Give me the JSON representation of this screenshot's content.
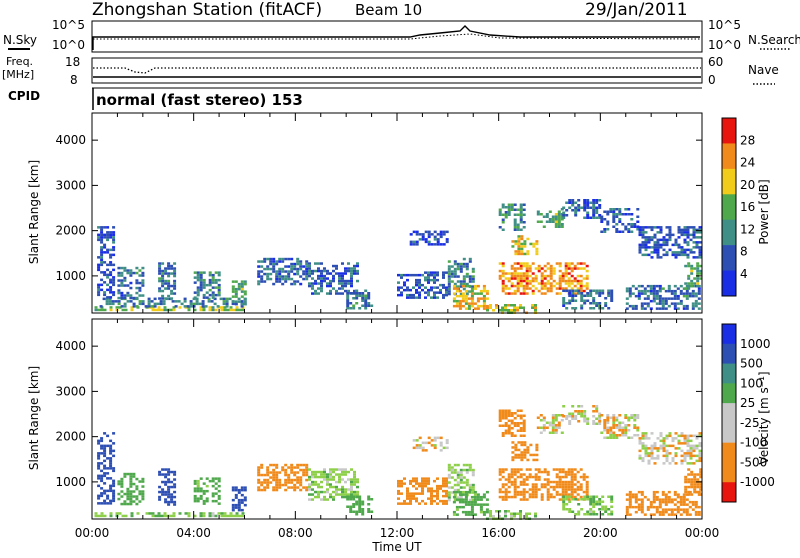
{
  "header": {
    "station": "Zhongshan Station (fitACF)",
    "beam": "Beam 10",
    "date": "29/Jan/2011"
  },
  "noise_panel": {
    "left_label": "N.Sky",
    "right_label": "N.Search",
    "tick_top": "10^5",
    "tick_bottom": "10^0"
  },
  "freq_panel": {
    "left_label_1": "Freq.",
    "left_label_2": "[MHz]",
    "tick_top": "18",
    "tick_bottom": "8",
    "right_label": "Nave",
    "right_tick_top": "60",
    "right_tick_bottom": "0"
  },
  "cpid": {
    "label": "CPID",
    "text": "normal (fast stereo) 153"
  },
  "x_axis": {
    "label": "Time UT",
    "ticks": [
      "00:00",
      "04:00",
      "08:00",
      "12:00",
      "16:00",
      "20:00",
      "00:00"
    ]
  },
  "colors": {
    "blue": "#1a2ee6",
    "dark_blue": "#2d4fb4",
    "teal": "#3f8f86",
    "green": "#4fa84b",
    "light_green": "#8fd04a",
    "yellow": "#f2cc1a",
    "orange": "#f08a1a",
    "red": "#e8140e",
    "grey": "#c8c8c8"
  },
  "chart_data": [
    {
      "type": "heatmap",
      "title": "",
      "ylabel": "Slant Range [km]",
      "xlabel": "",
      "ylim": [
        180,
        4600
      ],
      "xlim": [
        0,
        24
      ],
      "y_ticks": [
        "1000",
        "2000",
        "3000",
        "4000"
      ],
      "colorbar": {
        "label": "Power [dB]",
        "ticks": [
          "4",
          "8",
          "12",
          "16",
          "20",
          "24",
          "28"
        ],
        "range": [
          0,
          32
        ],
        "colors": [
          "#1a2ee6",
          "#2d4fb4",
          "#3f8f86",
          "#4fa84b",
          "#f2cc1a",
          "#f08a1a",
          "#e8140e"
        ]
      },
      "regions": [
        {
          "t0": 0.1,
          "t1": 6.0,
          "r0": 230,
          "r1": 330,
          "value": 18
        },
        {
          "t0": 0.3,
          "t1": 6.0,
          "r0": 330,
          "r1": 520,
          "value": 10
        },
        {
          "t0": 0.2,
          "t1": 0.8,
          "r0": 500,
          "r1": 2100,
          "value": 6
        },
        {
          "t0": 1.0,
          "t1": 2.0,
          "r0": 520,
          "r1": 1200,
          "value": 9
        },
        {
          "t0": 2.6,
          "t1": 3.2,
          "r0": 520,
          "r1": 1300,
          "value": 10
        },
        {
          "t0": 4.0,
          "t1": 5.0,
          "r0": 500,
          "r1": 1100,
          "value": 11
        },
        {
          "t0": 5.5,
          "t1": 6.0,
          "r0": 400,
          "r1": 900,
          "value": 14
        },
        {
          "t0": 6.5,
          "t1": 8.5,
          "r0": 800,
          "r1": 1400,
          "value": 8
        },
        {
          "t0": 8.5,
          "t1": 10.5,
          "r0": 600,
          "r1": 1300,
          "value": 8
        },
        {
          "t0": 10.0,
          "t1": 11.0,
          "r0": 300,
          "r1": 700,
          "value": 10
        },
        {
          "t0": 12.0,
          "t1": 14.0,
          "r0": 500,
          "r1": 1100,
          "value": 7
        },
        {
          "t0": 12.5,
          "t1": 14.0,
          "r0": 1700,
          "r1": 2000,
          "value": 6
        },
        {
          "t0": 14.0,
          "t1": 15.0,
          "r0": 600,
          "r1": 1400,
          "value": 10
        },
        {
          "t0": 14.2,
          "t1": 15.5,
          "r0": 300,
          "r1": 800,
          "value": 22
        },
        {
          "t0": 15.5,
          "t1": 17.5,
          "r0": 200,
          "r1": 380,
          "value": 20
        },
        {
          "t0": 16.0,
          "t1": 19.5,
          "r0": 600,
          "r1": 1300,
          "value": 24
        },
        {
          "t0": 16.5,
          "t1": 17.5,
          "r0": 1500,
          "r1": 1900,
          "value": 20
        },
        {
          "t0": 16.0,
          "t1": 17.0,
          "r0": 2000,
          "r1": 2600,
          "value": 12
        },
        {
          "t0": 17.5,
          "t1": 18.5,
          "r0": 2100,
          "r1": 2500,
          "value": 14
        },
        {
          "t0": 18.5,
          "t1": 20.0,
          "r0": 2300,
          "r1": 2700,
          "value": 8
        },
        {
          "t0": 18.5,
          "t1": 20.5,
          "r0": 300,
          "r1": 700,
          "value": 9
        },
        {
          "t0": 20.0,
          "t1": 21.5,
          "r0": 2000,
          "r1": 2500,
          "value": 8
        },
        {
          "t0": 21.5,
          "t1": 23.9,
          "r0": 1400,
          "r1": 2100,
          "value": 7
        },
        {
          "t0": 21.0,
          "t1": 23.9,
          "r0": 300,
          "r1": 800,
          "value": 9
        },
        {
          "t0": 23.3,
          "t1": 23.9,
          "r0": 700,
          "r1": 1300,
          "value": 14
        }
      ]
    },
    {
      "type": "heatmap",
      "title": "",
      "ylabel": "Slant Range [km]",
      "xlabel": "Time UT",
      "ylim": [
        180,
        4600
      ],
      "xlim": [
        0,
        24
      ],
      "y_ticks": [
        "1000",
        "2000",
        "3000",
        "4000"
      ],
      "colorbar": {
        "label": "Velocity [m s⁻¹]",
        "ticks": [
          "1000",
          "500",
          "100",
          "25",
          "-25",
          "-100",
          "-500",
          "-1000"
        ],
        "range": [
          -1000,
          1000
        ],
        "colors": [
          "#e8140e",
          "#f08a1a",
          "#f08a1a",
          "#c8c8c8",
          "#c8c8c8",
          "#4fa84b",
          "#3f8f86",
          "#2d4fb4",
          "#1a2ee6"
        ]
      },
      "regions": [
        {
          "t0": 0.1,
          "t1": 6.0,
          "r0": 230,
          "r1": 330,
          "value": 80
        },
        {
          "t0": 0.2,
          "t1": 0.8,
          "r0": 500,
          "r1": 2100,
          "value": 700
        },
        {
          "t0": 1.0,
          "t1": 2.0,
          "r0": 520,
          "r1": 1200,
          "value": 400
        },
        {
          "t0": 2.6,
          "t1": 3.2,
          "r0": 520,
          "r1": 1300,
          "value": 600
        },
        {
          "t0": 4.0,
          "t1": 5.0,
          "r0": 500,
          "r1": 1100,
          "value": 150
        },
        {
          "t0": 5.5,
          "t1": 6.0,
          "r0": 400,
          "r1": 900,
          "value": 700
        },
        {
          "t0": 6.5,
          "t1": 8.5,
          "r0": 800,
          "r1": 1400,
          "value": -200
        },
        {
          "t0": 8.5,
          "t1": 10.5,
          "r0": 600,
          "r1": 1300,
          "value": 60
        },
        {
          "t0": 10.0,
          "t1": 11.0,
          "r0": 300,
          "r1": 700,
          "value": 300
        },
        {
          "t0": 12.0,
          "t1": 14.0,
          "r0": 500,
          "r1": 1100,
          "value": -300
        },
        {
          "t0": 12.5,
          "t1": 14.0,
          "r0": 1700,
          "r1": 2000,
          "value": 0
        },
        {
          "t0": 14.0,
          "t1": 15.0,
          "r0": 600,
          "r1": 1400,
          "value": 60
        },
        {
          "t0": 14.2,
          "t1": 15.5,
          "r0": 300,
          "r1": 800,
          "value": 150
        },
        {
          "t0": 15.5,
          "t1": 17.5,
          "r0": 200,
          "r1": 380,
          "value": 80
        },
        {
          "t0": 16.0,
          "t1": 19.5,
          "r0": 600,
          "r1": 1300,
          "value": -300
        },
        {
          "t0": 16.5,
          "t1": 17.5,
          "r0": 1500,
          "r1": 1900,
          "value": -350
        },
        {
          "t0": 16.0,
          "t1": 17.0,
          "r0": 2000,
          "r1": 2600,
          "value": -200
        },
        {
          "t0": 17.5,
          "t1": 18.5,
          "r0": 2100,
          "r1": 2500,
          "value": 0
        },
        {
          "t0": 18.5,
          "t1": 20.0,
          "r0": 2300,
          "r1": 2700,
          "value": 0
        },
        {
          "t0": 18.5,
          "t1": 20.5,
          "r0": 300,
          "r1": 700,
          "value": 80
        },
        {
          "t0": 20.0,
          "t1": 21.5,
          "r0": 2000,
          "r1": 2500,
          "value": 0
        },
        {
          "t0": 21.5,
          "t1": 23.9,
          "r0": 1400,
          "r1": 2100,
          "value": 0
        },
        {
          "t0": 21.0,
          "t1": 23.9,
          "r0": 300,
          "r1": 800,
          "value": -300
        },
        {
          "t0": 23.3,
          "t1": 23.9,
          "r0": 700,
          "r1": 1300,
          "value": -400
        }
      ]
    }
  ]
}
